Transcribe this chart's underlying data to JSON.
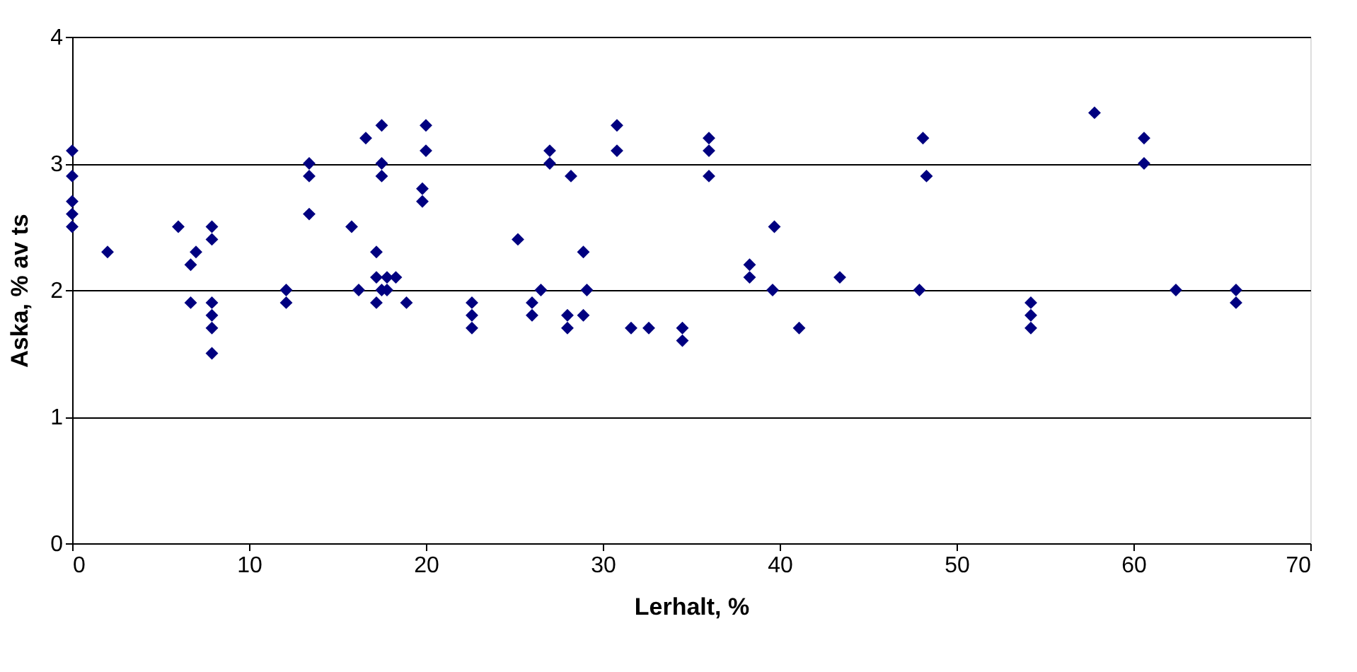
{
  "chart_data": {
    "type": "scatter",
    "xlabel": "Lerhalt, %",
    "ylabel": "Aska, % av ts",
    "x": [
      0,
      0,
      0,
      0,
      0,
      2,
      6,
      6.7,
      6.7,
      7,
      7.9,
      7.9,
      7.9,
      7.9,
      7.9,
      7.9,
      12.1,
      12.1,
      13.4,
      13.4,
      13.4,
      15.8,
      16.2,
      16.6,
      17.2,
      17.2,
      17.2,
      17.5,
      17.5,
      17.5,
      17.5,
      17.8,
      17.8,
      18.3,
      18.9,
      19.8,
      19.8,
      20,
      20,
      22.6,
      22.6,
      22.6,
      25.2,
      26,
      26,
      26.5,
      27,
      27,
      28,
      28,
      28.2,
      28.9,
      28.9,
      29.1,
      30.8,
      30.8,
      31.6,
      32.6,
      34.5,
      34.5,
      36,
      36,
      36,
      38.3,
      38.3,
      39.6,
      39.7,
      41.1,
      43.4,
      47.9,
      48.1,
      48.3,
      54.2,
      54.2,
      54.2,
      57.8,
      60.6,
      60.6,
      62.4,
      65.8,
      65.8
    ],
    "series": [
      {
        "color": "#000080",
        "values": [
          3.1,
          2.9,
          2.7,
          2.6,
          2.5,
          2.3,
          2.5,
          2.2,
          1.9,
          2.3,
          2.5,
          2.4,
          1.9,
          1.8,
          1.7,
          1.5,
          2.0,
          1.9,
          3.0,
          2.9,
          2.6,
          2.5,
          2.0,
          3.2,
          2.3,
          2.1,
          1.9,
          3.3,
          3.0,
          2.9,
          2.0,
          2.1,
          2.0,
          2.1,
          1.9,
          2.8,
          2.7,
          3.3,
          3.1,
          1.9,
          1.8,
          1.7,
          2.4,
          1.9,
          1.8,
          2.0,
          3.1,
          3.0,
          1.8,
          1.7,
          2.9,
          2.3,
          1.8,
          2.0,
          3.3,
          3.1,
          1.7,
          1.7,
          1.7,
          1.6,
          3.2,
          3.1,
          2.9,
          2.2,
          2.1,
          2.0,
          2.5,
          1.7,
          2.1,
          2.0,
          3.2,
          2.9,
          1.9,
          1.8,
          1.7,
          3.4,
          3.2,
          3.0,
          2.0,
          2.0,
          1.9
        ]
      }
    ],
    "xlim": [
      0,
      70
    ],
    "xticks": [
      0,
      10,
      20,
      30,
      40,
      50,
      60,
      70
    ],
    "ylim": [
      0,
      4
    ],
    "yticks": [
      0,
      1,
      2,
      3,
      4
    ],
    "grid": "y",
    "marker": "diamond",
    "legend": false
  }
}
